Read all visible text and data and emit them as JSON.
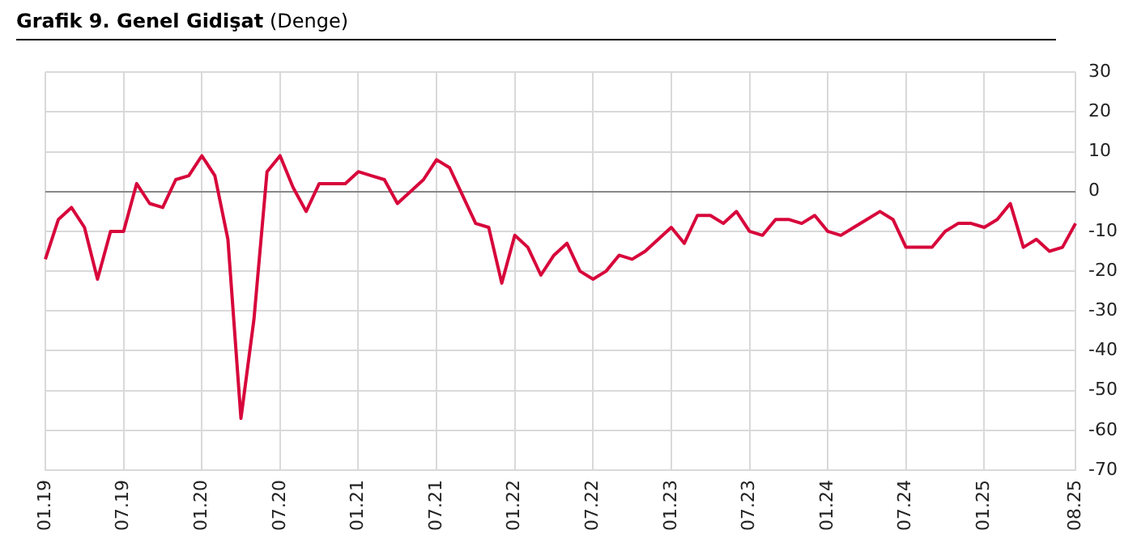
{
  "chart_data": {
    "type": "line",
    "title": "Grafik 9. Genel Gidişat",
    "subtitle": "(Denge)",
    "categories": [
      "01.19",
      null,
      null,
      null,
      null,
      null,
      "07.19",
      null,
      null,
      null,
      null,
      null,
      "01.20",
      null,
      null,
      null,
      null,
      null,
      "07.20",
      null,
      null,
      null,
      null,
      null,
      "01.21",
      null,
      null,
      null,
      null,
      null,
      "07.21",
      null,
      null,
      null,
      null,
      null,
      "01.22",
      null,
      null,
      null,
      null,
      null,
      "07.22",
      null,
      null,
      null,
      null,
      null,
      "01.23",
      null,
      null,
      null,
      null,
      null,
      "07.23",
      null,
      null,
      null,
      null,
      null,
      "01.24",
      null,
      null,
      null,
      null,
      null,
      "07.24",
      null,
      null,
      null,
      null,
      null,
      "01.25",
      null,
      null,
      null,
      null,
      null,
      null,
      "08.25"
    ],
    "series": [
      {
        "color": "#d7063b",
        "values": [
          -17,
          -7,
          -4,
          -9,
          -22,
          -10,
          -10,
          2,
          -3,
          -4,
          3,
          4,
          9,
          4,
          -12,
          -57,
          -32,
          5,
          9,
          1,
          -5,
          2,
          2,
          2,
          5,
          4,
          3,
          -3,
          0,
          3,
          8,
          6,
          -1,
          -8,
          -9,
          -23,
          -11,
          -14,
          -21,
          -16,
          -13,
          -20,
          -22,
          -20,
          -16,
          -17,
          -15,
          -12,
          -9,
          -13,
          -6,
          -6,
          -8,
          -5,
          -10,
          -11,
          -7,
          -7,
          -8,
          -6,
          -10,
          -11,
          -9,
          -7,
          -5,
          -7,
          -14,
          -14,
          -14,
          -10,
          -8,
          -8,
          -9,
          -7,
          -3,
          -14,
          -12,
          -15,
          -14,
          -8
        ]
      }
    ],
    "ylim": [
      -70,
      30
    ],
    "yticks": [
      30,
      20,
      10,
      0,
      -10,
      -20,
      -30,
      -40,
      -50,
      -60,
      -70
    ],
    "grid": true,
    "legend": false,
    "marker": "none",
    "line_style": "solid"
  }
}
